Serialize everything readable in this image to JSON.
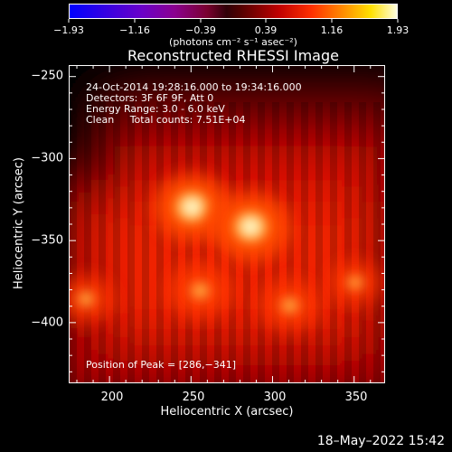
{
  "colorbar": {
    "ticks": [
      "−1.93",
      "−1.16",
      "−0.39",
      "0.39",
      "1.16",
      "1.93"
    ],
    "unit": "(photons cm⁻² s⁻¹ asec⁻²)"
  },
  "plot": {
    "title": "Reconstructed RHESSI Image",
    "annotations": {
      "time_range": "24-Oct-2014 19:28:16.000 to 19:34:16.000",
      "detectors": "Detectors: 3F 6F 9F, Att 0",
      "energy": "Energy Range: 3.0 - 6.0 keV",
      "clean": "Clean     Total counts: 7.51E+04"
    },
    "peak": "Position of Peak = [286,−341]",
    "xlabel": "Heliocentric X (arcsec)",
    "ylabel": "Heliocentric Y (arcsec)",
    "xticks": [
      "200",
      "250",
      "300",
      "350"
    ],
    "yticks": [
      "−250",
      "−300",
      "−350",
      "−400"
    ]
  },
  "image_sources": [
    {
      "x": 250,
      "y": -329,
      "level": 0.95
    },
    {
      "x": 286,
      "y": -341,
      "level": 1.0
    },
    {
      "x": 255,
      "y": -380,
      "level": 0.65
    },
    {
      "x": 185,
      "y": -385,
      "level": 0.45
    },
    {
      "x": 310,
      "y": -389,
      "level": 0.55
    },
    {
      "x": 350,
      "y": -375,
      "level": 0.35
    }
  ],
  "footer": {
    "date": "18–May–2022 15:42"
  }
}
